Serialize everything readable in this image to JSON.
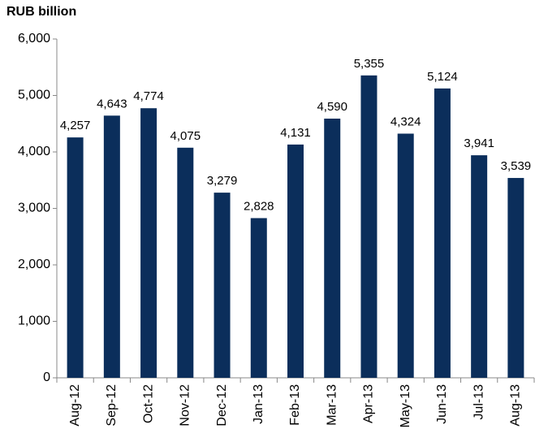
{
  "chart_data": {
    "type": "bar",
    "title": "RUB billion",
    "categories": [
      "Aug-12",
      "Sep-12",
      "Oct-12",
      "Nov-12",
      "Dec-12",
      "Jan-13",
      "Feb-13",
      "Mar-13",
      "Apr-13",
      "May-13",
      "Jun-13",
      "Jul-13",
      "Aug-13"
    ],
    "values": [
      4257,
      4643,
      4774,
      4075,
      3279,
      2828,
      4131,
      4590,
      5355,
      4324,
      5124,
      3941,
      3539
    ],
    "value_labels": [
      "4,257",
      "4,643",
      "4,774",
      "4,075",
      "3,279",
      "2,828",
      "4,131",
      "4,590",
      "5,355",
      "4,324",
      "5,124",
      "3,941",
      "3,539"
    ],
    "color": "#0b2e5b",
    "ylim": [
      0,
      6000
    ],
    "yticks": [
      0,
      {
        "value": 1000,
        "label": "1,000"
      },
      {
        "value": 2000,
        "label": "2,000"
      },
      {
        "value": 3000,
        "label": "3,000"
      },
      {
        "value": 4000,
        "label": "4,000"
      },
      {
        "value": 5000,
        "label": "5,000"
      },
      {
        "value": 6000,
        "label": "6,000"
      }
    ],
    "grid": false
  }
}
